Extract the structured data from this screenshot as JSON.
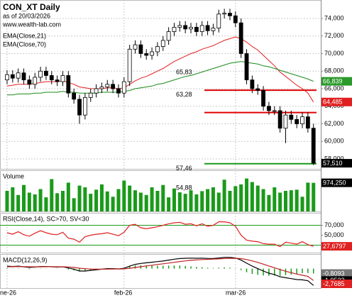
{
  "chart_data": {
    "type": "candlestick",
    "title": "CON_XT Daily",
    "subtitle": "as of 20/03/2026",
    "source": "www.wealth-lab.com",
    "xlim": [
      -1.27,
      56.31
    ],
    "xticks": [
      {
        "value": 0,
        "label": "ne-26"
      },
      {
        "value": 21,
        "label": "feb-26"
      },
      {
        "value": 41,
        "label": "mar-26"
      }
    ],
    "up_color": "#ffffff",
    "down_color": "#000000",
    "open": [
      67000,
      67600,
      67200,
      67800,
      67000,
      66500,
      67300,
      68000,
      67500,
      67000,
      66800,
      67500,
      65500,
      64800,
      63000,
      65000,
      65500,
      66000,
      66200,
      66500,
      66000,
      65500,
      66800,
      70500,
      71000,
      70000,
      69800,
      70200,
      70800,
      71500,
      72500,
      73000,
      73200,
      72800,
      73000,
      72500,
      73200,
      72600,
      72900,
      74500,
      74600,
      74300,
      73500,
      70000,
      67000,
      66000,
      65800,
      64000,
      63500,
      63500,
      61500,
      63000,
      62500,
      62000,
      62800,
      61500
    ],
    "high": [
      68100,
      68100,
      68300,
      68300,
      67500,
      67800,
      68500,
      68500,
      68000,
      67500,
      68000,
      68000,
      66000,
      65300,
      65500,
      66000,
      66500,
      66700,
      67000,
      67000,
      66500,
      67300,
      71000,
      71500,
      71500,
      70500,
      70700,
      71300,
      72000,
      73000,
      73500,
      73700,
      73700,
      73500,
      73500,
      73700,
      73700,
      73400,
      75000,
      75100,
      75100,
      74800,
      74000,
      70500,
      67500,
      66500,
      66300,
      64500,
      64000,
      64000,
      63500,
      63500,
      63000,
      63300,
      63300,
      62000
    ],
    "low": [
      66500,
      66700,
      66700,
      66500,
      66000,
      66000,
      66800,
      67000,
      66500,
      66300,
      66300,
      65000,
      64300,
      62000,
      62500,
      64500,
      65000,
      65500,
      65700,
      65500,
      65000,
      65000,
      66300,
      70000,
      69500,
      69300,
      69300,
      69700,
      70300,
      71000,
      72000,
      72500,
      72300,
      72300,
      72000,
      72000,
      72100,
      72100,
      72400,
      74000,
      73800,
      73000,
      69500,
      66500,
      65500,
      65300,
      63500,
      63000,
      63000,
      61000,
      59800,
      62000,
      61500,
      61500,
      61000,
      57300
    ],
    "close": [
      67600,
      67200,
      67800,
      67000,
      66500,
      67300,
      68000,
      67500,
      67000,
      66800,
      67500,
      65500,
      64800,
      63000,
      65000,
      65500,
      66000,
      66200,
      66500,
      66000,
      65500,
      66800,
      70500,
      71000,
      70000,
      69800,
      70200,
      70800,
      71500,
      72500,
      73000,
      73200,
      72800,
      73000,
      72500,
      73200,
      72600,
      72900,
      74500,
      74600,
      74300,
      73500,
      70000,
      67000,
      66000,
      65800,
      64000,
      63500,
      63500,
      61500,
      63000,
      62500,
      62000,
      62800,
      61500,
      57510
    ],
    "ylim": [
      56870,
      76100
    ],
    "yticks": [
      {
        "value": 58000,
        "label": "58,000"
      },
      {
        "value": 60000,
        "label": "60,000"
      },
      {
        "value": 62000,
        "label": "62,000"
      },
      {
        "value": 64000,
        "label": "64,000"
      },
      {
        "value": 66000,
        "label": "66,000"
      },
      {
        "value": 68000,
        "label": "68,000"
      },
      {
        "value": 70000,
        "label": "70,000"
      },
      {
        "value": 72000,
        "label": "72,000"
      },
      {
        "value": 74000,
        "label": "74,000"
      }
    ],
    "grid": true,
    "series": [
      {
        "name": "EMA(Close,21)",
        "color": "#e02020",
        "values": [
          66300,
          66400,
          66500,
          66500,
          66500,
          66600,
          66700,
          66800,
          66800,
          66800,
          66900,
          66700,
          66500,
          66200,
          66100,
          66000,
          66000,
          66000,
          66100,
          66100,
          66000,
          66100,
          66500,
          66900,
          67200,
          67400,
          67700,
          68000,
          68300,
          68700,
          69100,
          69400,
          69700,
          70000,
          70200,
          70500,
          70700,
          70900,
          71200,
          71500,
          71700,
          71900,
          71700,
          71300,
          70800,
          70400,
          69800,
          69200,
          68600,
          67900,
          67400,
          66900,
          66400,
          66000,
          65500,
          64485
        ]
      },
      {
        "name": "EMA(Close,70)",
        "color": "#1a8a1a",
        "values": [
          65300,
          65300,
          65400,
          65400,
          65400,
          65500,
          65500,
          65600,
          65600,
          65600,
          65700,
          65600,
          65600,
          65500,
          65500,
          65500,
          65500,
          65600,
          65600,
          65600,
          65600,
          65700,
          65800,
          66000,
          66100,
          66200,
          66300,
          66500,
          66600,
          66800,
          67000,
          67200,
          67400,
          67500,
          67700,
          67900,
          68100,
          68300,
          68500,
          68700,
          68900,
          69000,
          69100,
          69000,
          68900,
          68800,
          68600,
          68500,
          68300,
          68100,
          67900,
          67700,
          67500,
          67300,
          67100,
          66839
        ]
      }
    ],
    "levels": [
      {
        "value": 65830,
        "label": "65,83",
        "color": "#e00000"
      },
      {
        "value": 63280,
        "label": "63,28",
        "color": "#e00000"
      },
      {
        "value": 57460,
        "label": "57,46",
        "color": "#1a9a1a"
      }
    ],
    "markers": [
      {
        "value": 66839,
        "label": "66,839",
        "color": "#2a9a2a"
      },
      {
        "value": 64485,
        "label": "64,485",
        "color": "#e02020"
      },
      {
        "value": 57510,
        "label": "57,510",
        "color": "#000000"
      }
    ],
    "annotations": [
      "54,88"
    ],
    "panels": [
      {
        "type": "bar",
        "title": "Volume",
        "color": "#1a9a1a",
        "ylim": [
          0,
          1400000
        ],
        "values": [
          700000,
          820000,
          560000,
          900000,
          640000,
          580000,
          760000,
          480000,
          1100000,
          620000,
          700000,
          980000,
          450000,
          880000,
          820000,
          600000,
          740000,
          920000,
          680000,
          500000,
          760000,
          1050000,
          880000,
          720000,
          640000,
          560000,
          820000,
          700000,
          900000,
          480000,
          780000,
          650000,
          600000,
          720000,
          580000,
          690000,
          760000,
          820000,
          640000,
          1080000,
          700000,
          860000,
          920000,
          1120000,
          1000000,
          880000,
          760000,
          560000,
          820000,
          640000,
          700000,
          720000,
          740000,
          500000,
          980000,
          974250
        ],
        "markers": [
          {
            "value": 974250,
            "label": "974,250",
            "color": "#000000"
          }
        ]
      },
      {
        "type": "line",
        "title": "RSI(Close,14), SC>70, SV<30",
        "color": "#e02020",
        "ylim": [
          15,
          95
        ],
        "yticks": [
          {
            "value": 70,
            "label": "70,000"
          },
          {
            "value": 50,
            "label": "50,000"
          }
        ],
        "bands": [
          70,
          30
        ],
        "band_color": "#1a9a1a",
        "values": [
          55,
          52,
          57,
          51,
          48,
          54,
          59,
          55,
          52,
          51,
          56,
          44,
          42,
          36,
          47,
          50,
          52,
          53,
          55,
          52,
          49,
          56,
          70,
          72,
          65,
          63,
          65,
          67,
          70,
          73,
          75,
          76,
          72,
          73,
          69,
          73,
          68,
          70,
          77,
          77,
          75,
          68,
          50,
          40,
          38,
          37,
          33,
          32,
          32,
          27,
          36,
          34,
          32,
          37,
          31,
          27.6797
        ],
        "markers": [
          {
            "value": 27.6797,
            "label": "27,6797",
            "color": "#e02020"
          }
        ]
      },
      {
        "type": "macd",
        "title": "MACD(12,26,9)",
        "ylim": [
          -3.2,
          2.4
        ],
        "series": [
          {
            "color": "#000000",
            "values": [
              0.4,
              0.35,
              0.4,
              0.3,
              0.2,
              0.25,
              0.35,
              0.35,
              0.3,
              0.25,
              0.3,
              0.1,
              -0.1,
              -0.4,
              -0.4,
              -0.3,
              -0.2,
              -0.1,
              0,
              0,
              -0.05,
              0.05,
              0.4,
              0.7,
              0.85,
              0.95,
              1.05,
              1.15,
              1.25,
              1.4,
              1.55,
              1.65,
              1.7,
              1.72,
              1.7,
              1.72,
              1.68,
              1.65,
              1.75,
              1.85,
              1.85,
              1.75,
              1.4,
              0.9,
              0.4,
              0,
              -0.4,
              -0.75,
              -1,
              -1.35,
              -1.5,
              -1.65,
              -1.8,
              -1.85,
              -2,
              -2.7685
            ]
          },
          {
            "color": "#c02020",
            "values": [
              0.3,
              0.31,
              0.33,
              0.32,
              0.3,
              0.29,
              0.3,
              0.31,
              0.31,
              0.3,
              0.3,
              0.26,
              0.19,
              0.07,
              -0.02,
              -0.08,
              -0.1,
              -0.1,
              -0.08,
              -0.06,
              -0.06,
              -0.04,
              0.05,
              0.18,
              0.31,
              0.44,
              0.56,
              0.68,
              0.79,
              0.91,
              1.04,
              1.16,
              1.27,
              1.36,
              1.43,
              1.49,
              1.53,
              1.56,
              1.6,
              1.65,
              1.69,
              1.7,
              1.64,
              1.49,
              1.27,
              1.02,
              0.73,
              0.43,
              0.14,
              -0.16,
              -0.43,
              -0.67,
              -0.9,
              -1.09,
              -1.27,
              -1.9532
            ]
          }
        ],
        "histogram": {
          "color": "#1a9a1a",
          "values": [
            0.1,
            0.04,
            0.07,
            -0.02,
            -0.1,
            -0.04,
            0.05,
            0.04,
            -0.01,
            -0.05,
            0,
            -0.16,
            -0.29,
            -0.47,
            -0.38,
            -0.22,
            -0.1,
            0,
            0.08,
            0.06,
            0.01,
            0.09,
            0.35,
            0.52,
            0.54,
            0.51,
            0.49,
            0.47,
            0.46,
            0.49,
            0.51,
            0.49,
            0.43,
            0.36,
            0.27,
            0.23,
            0.15,
            0.09,
            0.15,
            0.2,
            0.16,
            0.05,
            -0.24,
            -0.59,
            -0.87,
            -1.02,
            -1.13,
            -1.18,
            -1.14,
            -1.19,
            -1.07,
            -0.98,
            -0.9,
            -0.76,
            -0.73,
            -0.8093
          ]
        },
        "markers": [
          {
            "value": -0.8093,
            "label": "-0,8093",
            "color": "#777777"
          },
          {
            "value": -1.9532,
            "label": "-1,9532",
            "color": "#000000"
          },
          {
            "value": -2.7685,
            "label": "-2,7685",
            "color": "#e02020"
          }
        ]
      }
    ]
  }
}
